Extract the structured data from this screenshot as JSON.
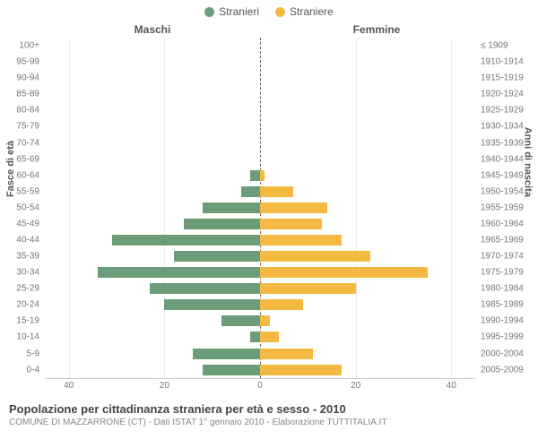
{
  "legend": {
    "male": {
      "label": "Stranieri",
      "color": "#6b9e78"
    },
    "female": {
      "label": "Straniere",
      "color": "#f4b942"
    }
  },
  "subtitles": {
    "left": "Maschi",
    "right": "Femmine"
  },
  "axis_titles": {
    "left": "Fasce di età",
    "right": "Anni di nascita"
  },
  "xaxis": {
    "max": 45,
    "ticks_left": [
      40,
      20,
      0
    ],
    "ticks_right": [
      0,
      20,
      40
    ]
  },
  "rows": [
    {
      "age": "100+",
      "birth": "≤ 1909",
      "m": 0,
      "f": 0
    },
    {
      "age": "95-99",
      "birth": "1910-1914",
      "m": 0,
      "f": 0
    },
    {
      "age": "90-94",
      "birth": "1915-1919",
      "m": 0,
      "f": 0
    },
    {
      "age": "85-89",
      "birth": "1920-1924",
      "m": 0,
      "f": 0
    },
    {
      "age": "80-84",
      "birth": "1925-1929",
      "m": 0,
      "f": 0
    },
    {
      "age": "75-79",
      "birth": "1930-1934",
      "m": 0,
      "f": 0
    },
    {
      "age": "70-74",
      "birth": "1935-1939",
      "m": 0,
      "f": 0
    },
    {
      "age": "65-69",
      "birth": "1940-1944",
      "m": 0,
      "f": 0
    },
    {
      "age": "60-64",
      "birth": "1945-1949",
      "m": 2,
      "f": 1
    },
    {
      "age": "55-59",
      "birth": "1950-1954",
      "m": 4,
      "f": 7
    },
    {
      "age": "50-54",
      "birth": "1955-1959",
      "m": 12,
      "f": 14
    },
    {
      "age": "45-49",
      "birth": "1960-1964",
      "m": 16,
      "f": 13
    },
    {
      "age": "40-44",
      "birth": "1965-1969",
      "m": 31,
      "f": 17
    },
    {
      "age": "35-39",
      "birth": "1970-1974",
      "m": 18,
      "f": 23
    },
    {
      "age": "30-34",
      "birth": "1975-1979",
      "m": 34,
      "f": 35
    },
    {
      "age": "25-29",
      "birth": "1980-1984",
      "m": 23,
      "f": 20
    },
    {
      "age": "20-24",
      "birth": "1985-1989",
      "m": 20,
      "f": 9
    },
    {
      "age": "15-19",
      "birth": "1990-1994",
      "m": 8,
      "f": 2
    },
    {
      "age": "10-14",
      "birth": "1995-1999",
      "m": 2,
      "f": 4
    },
    {
      "age": "5-9",
      "birth": "2000-2004",
      "m": 14,
      "f": 11
    },
    {
      "age": "0-4",
      "birth": "2005-2009",
      "m": 12,
      "f": 17
    }
  ],
  "footer": {
    "title": "Popolazione per cittadinanza straniera per età e sesso - 2010",
    "source": "COMUNE DI MAZZARRONE (CT) - Dati ISTAT 1° gennaio 2010 - Elaborazione TUTTITALIA.IT"
  },
  "colors": {
    "grid": "#eeeeee",
    "centerline": "#666666",
    "background": "#ffffff"
  }
}
